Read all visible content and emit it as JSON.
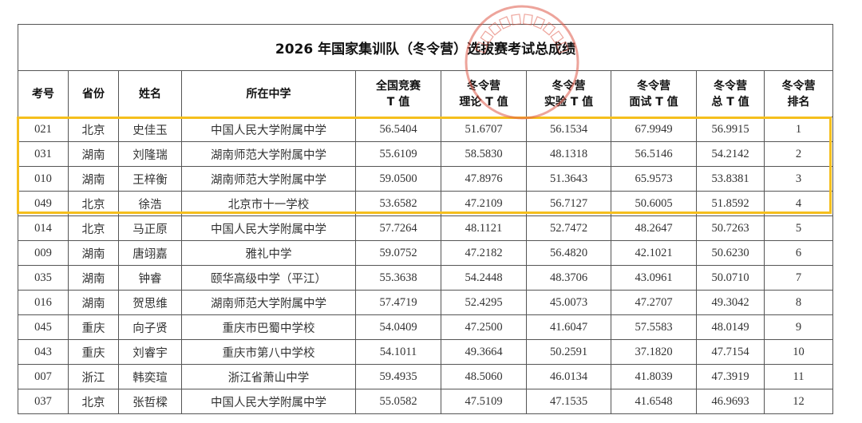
{
  "title": "2026 年国家集训队（冬令营）选拔赛考试总成绩",
  "stamp_text": "全国中学生生物学竞赛委员会",
  "highlight_color": "#f5bf1d",
  "stamp_color": "#e05a4a",
  "headers": [
    [
      "考号"
    ],
    [
      "省份"
    ],
    [
      "姓名"
    ],
    [
      "所在中学"
    ],
    [
      "全国竞赛",
      "T 值"
    ],
    [
      "冬令营",
      "理论 T 值"
    ],
    [
      "冬令营",
      "实验 T 值"
    ],
    [
      "冬令营",
      "面试 T 值"
    ],
    [
      "冬令营",
      "总 T 值"
    ],
    [
      "冬令营",
      "排名"
    ]
  ],
  "rows": [
    [
      "021",
      "北京",
      "史佳玉",
      "中国人民大学附属中学",
      "56.5404",
      "51.6707",
      "56.1534",
      "67.9949",
      "56.9915",
      "1"
    ],
    [
      "031",
      "湖南",
      "刘隆瑞",
      "湖南师范大学附属中学",
      "55.6109",
      "58.5830",
      "48.1318",
      "56.5146",
      "54.2142",
      "2"
    ],
    [
      "010",
      "湖南",
      "王梓衡",
      "湖南师范大学附属中学",
      "59.0500",
      "47.8976",
      "51.3643",
      "65.9573",
      "53.8381",
      "3"
    ],
    [
      "049",
      "北京",
      "徐浩",
      "北京市十一学校",
      "53.6582",
      "47.2109",
      "56.7127",
      "50.6005",
      "51.8592",
      "4"
    ],
    [
      "014",
      "北京",
      "马正原",
      "中国人民大学附属中学",
      "57.7264",
      "48.1121",
      "52.7472",
      "48.2647",
      "50.7263",
      "5"
    ],
    [
      "009",
      "湖南",
      "唐翊嘉",
      "雅礼中学",
      "59.0752",
      "47.2182",
      "56.4820",
      "42.1021",
      "50.6230",
      "6"
    ],
    [
      "035",
      "湖南",
      "钟睿",
      "颐华高级中学（平江）",
      "55.3638",
      "54.2448",
      "48.3706",
      "43.0961",
      "50.0710",
      "7"
    ],
    [
      "016",
      "湖南",
      "贺思维",
      "湖南师范大学附属中学",
      "57.4719",
      "52.4295",
      "45.0073",
      "47.2707",
      "49.3042",
      "8"
    ],
    [
      "045",
      "重庆",
      "向子贤",
      "重庆市巴蜀中学校",
      "54.0409",
      "47.2500",
      "41.6047",
      "57.5583",
      "48.0149",
      "9"
    ],
    [
      "043",
      "重庆",
      "刘睿宇",
      "重庆市第八中学校",
      "54.1011",
      "49.3664",
      "50.2591",
      "37.1820",
      "47.7154",
      "10"
    ],
    [
      "007",
      "浙江",
      "韩奕瑄",
      "浙江省萧山中学",
      "59.4935",
      "48.5060",
      "46.0134",
      "41.8039",
      "47.3919",
      "11"
    ],
    [
      "037",
      "北京",
      "张哲樑",
      "中国人民大学附属中学",
      "55.0582",
      "47.5109",
      "47.1535",
      "41.6548",
      "46.9693",
      "12"
    ]
  ]
}
